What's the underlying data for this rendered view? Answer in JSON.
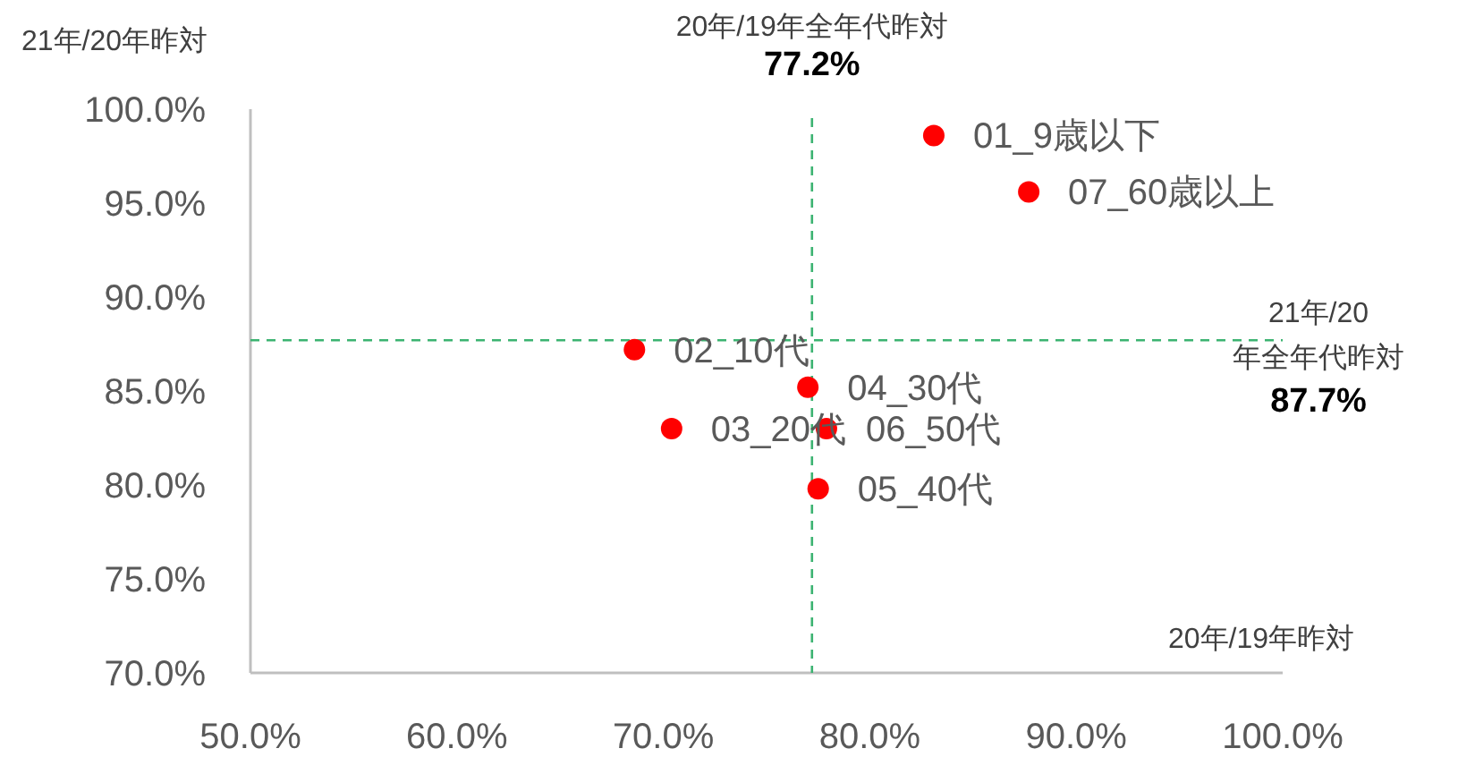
{
  "chart_data": {
    "type": "scatter",
    "xlabel": "20年/19年昨対",
    "ylabel": "21年/20年昨対",
    "x": [
      83.1,
      68.6,
      70.4,
      77.0,
      77.5,
      77.9,
      87.7
    ],
    "values": [
      98.6,
      87.2,
      83.0,
      85.2,
      79.8,
      83.0,
      95.6
    ],
    "value_labels": [
      "01_9歳以下",
      "02_10代",
      "03_20代",
      "04_30代",
      "05_40代",
      "06_50代",
      "07_60歳以上"
    ],
    "color": "#ff0000",
    "marker": "circle",
    "legend": false,
    "grid": false,
    "xlim": [
      50,
      100
    ],
    "ylim": [
      70,
      100
    ],
    "xticks": [
      {
        "value": 50,
        "label": "50.0%"
      },
      {
        "value": 60,
        "label": "60.0%"
      },
      {
        "value": 70,
        "label": "70.0%"
      },
      {
        "value": 80,
        "label": "80.0%"
      },
      {
        "value": 90,
        "label": "90.0%"
      },
      {
        "value": 100,
        "label": "100.0%"
      }
    ],
    "yticks": [
      {
        "value": 70,
        "label": "70.0%"
      },
      {
        "value": 75,
        "label": "75.0%"
      },
      {
        "value": 80,
        "label": "80.0%"
      },
      {
        "value": 85,
        "label": "85.0%"
      },
      {
        "value": 90,
        "label": "90.0%"
      },
      {
        "value": 95,
        "label": "95.0%"
      },
      {
        "value": 100,
        "label": "100.0%"
      }
    ],
    "ref_lines": [
      {
        "axis": "x",
        "value": 77.2,
        "label": "20年/19年全年代昨対\n**77.2%**",
        "color": "#3cb371",
        "line_style": "dashed"
      },
      {
        "axis": "y",
        "value": 87.7,
        "label": "21年/20年全年代昨対\n**87.7%**",
        "color": "#3cb371",
        "line_style": "dashed"
      }
    ]
  }
}
